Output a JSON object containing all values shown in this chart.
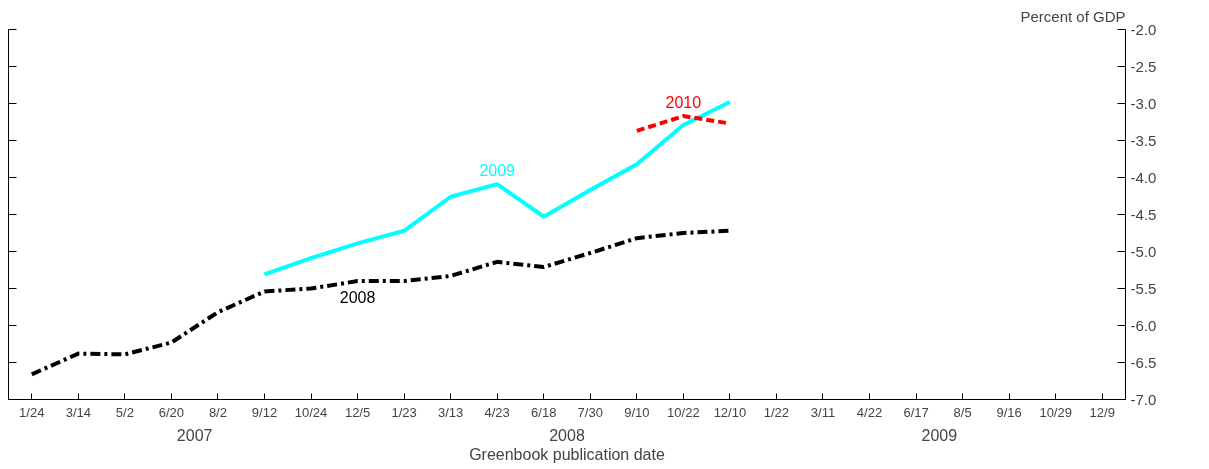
{
  "chart_data": {
    "type": "line",
    "xlabel": "Greenbook publication date",
    "ylabel": "Percent of GDP",
    "categories": [
      "1/24",
      "3/14",
      "5/2",
      "6/20",
      "8/2",
      "9/12",
      "10/24",
      "12/5",
      "1/23",
      "3/13",
      "4/23",
      "6/18",
      "7/30",
      "9/10",
      "10/22",
      "12/10",
      "1/22",
      "3/11",
      "4/22",
      "6/17",
      "8/5",
      "9/16",
      "10/29",
      "12/9"
    ],
    "series": [
      {
        "name": "2008",
        "color": "#000000",
        "line_style": "dashdot",
        "values": [
          -6.66,
          -6.38,
          -6.39,
          -6.23,
          -5.82,
          -5.54,
          -5.5,
          -5.4,
          -5.4,
          -5.33,
          -5.14,
          -5.21,
          -5.02,
          -4.82,
          -4.75,
          -4.72,
          null,
          null,
          null,
          null,
          null,
          null,
          null,
          null
        ]
      },
      {
        "name": "2009",
        "color": "#00ffff",
        "line_style": "solid",
        "values": [
          null,
          null,
          null,
          null,
          null,
          -5.31,
          -5.09,
          -4.89,
          -4.72,
          -4.26,
          -4.09,
          -4.53,
          -4.17,
          -3.82,
          -3.29,
          -2.98,
          null,
          null,
          null,
          null,
          null,
          null,
          null,
          null
        ]
      },
      {
        "name": "2010",
        "color": "#ff0000",
        "line_style": "dashed",
        "values": [
          null,
          null,
          null,
          null,
          null,
          null,
          null,
          null,
          null,
          null,
          null,
          null,
          null,
          -3.37,
          -3.17,
          -3.27,
          null,
          null,
          null,
          null,
          null,
          null,
          null,
          null
        ]
      }
    ],
    "ylim": [
      -7.0,
      -2.0
    ],
    "yticks": [
      {
        "value": -7.0,
        "label": "-7.0"
      },
      {
        "value": -6.5,
        "label": "-6.5"
      },
      {
        "value": -6.0,
        "label": "-6.0"
      },
      {
        "value": -5.5,
        "label": "-5.5"
      },
      {
        "value": -5.0,
        "label": "-5.0"
      },
      {
        "value": -4.5,
        "label": "-4.5"
      },
      {
        "value": -4.0,
        "label": "-4.0"
      },
      {
        "value": -3.5,
        "label": "-3.5"
      },
      {
        "value": -3.0,
        "label": "-3.0"
      },
      {
        "value": -2.5,
        "label": "-2.5"
      },
      {
        "value": -2.0,
        "label": "-2.0"
      }
    ],
    "annotations": [
      "2007",
      "2008",
      "2009"
    ],
    "grid": false,
    "legend": false,
    "marker": "none"
  }
}
